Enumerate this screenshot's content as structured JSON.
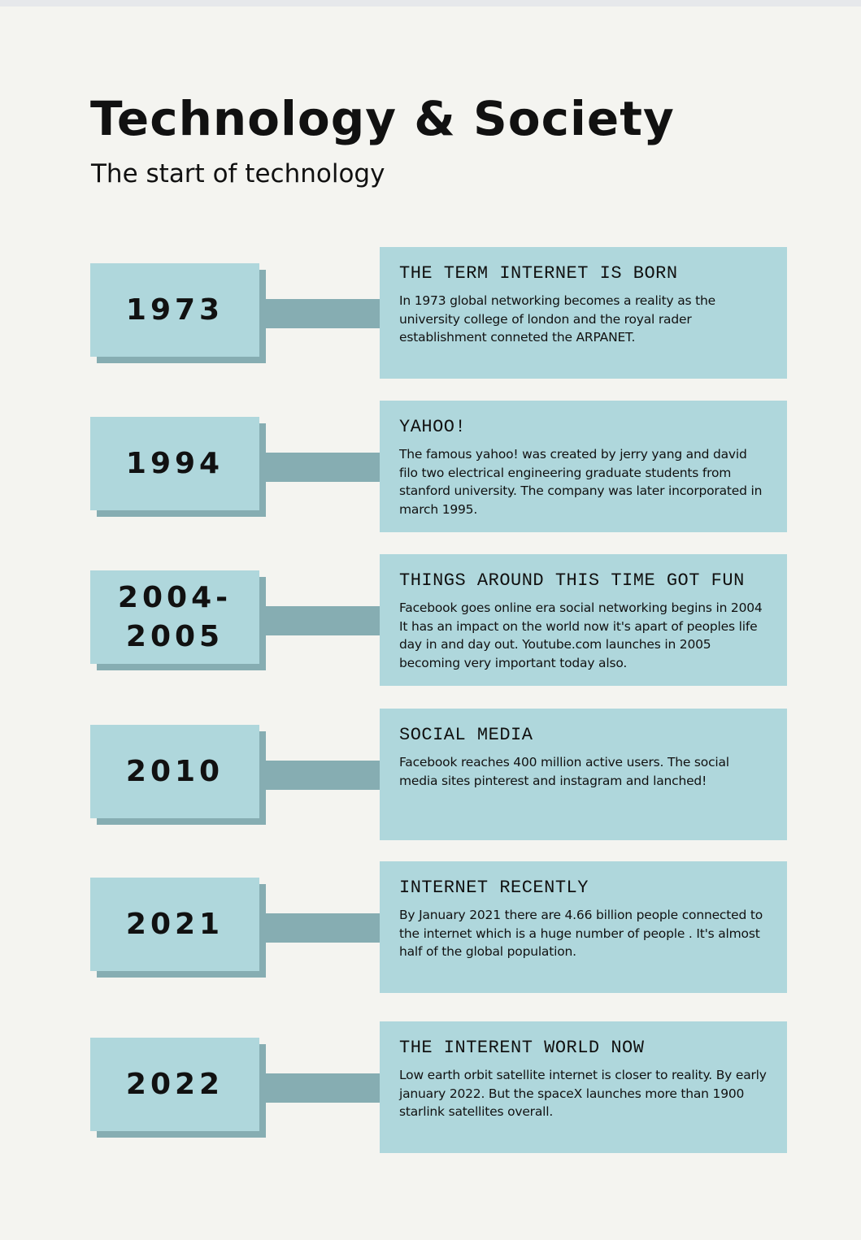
{
  "header": {
    "title": "Technology & Society",
    "subtitle": "The start of technology"
  },
  "colors": {
    "background": "#f4f4f0",
    "card": "#afd7dc",
    "shadow": "#86adb2"
  },
  "timeline": [
    {
      "year": "1973",
      "heading": "THE TERM INTERNET IS BORN",
      "text": "In 1973 global networking becomes a reality as the university college of london and the royal rader establishment conneted  the ARPANET."
    },
    {
      "year": "1994",
      "heading": "YAHOO!",
      "text": "The famous yahoo! was created by jerry yang and david filo two electrical engineering graduate students from stanford university. The company was later incorporated in march 1995."
    },
    {
      "year": "2004-2005",
      "heading": "THINGS AROUND THIS TIME GOT FUN",
      "text": "Facebook goes online era social networking begins in 2004 It has an impact on the world now it's apart of peoples life day in and day out. Youtube.com launches in 2005 becoming very important today also."
    },
    {
      "year": "2010",
      "heading": "SOCIAL MEDIA",
      "text": "Facebook reaches 400 million active users. The social media sites pinterest and instagram and lanched!"
    },
    {
      "year": "2021",
      "heading": "INTERNET RECENTLY",
      "text": "By January 2021 there are 4.66 billion people connected to the internet which is a huge number of people . It's almost half of the global population."
    },
    {
      "year": "2022",
      "heading": "THE INTERENT WORLD NOW",
      "text": " Low earth orbit satellite internet is closer to reality. By early january 2022. But the spaceX launches more than 1900 starlink satellites overall."
    }
  ]
}
